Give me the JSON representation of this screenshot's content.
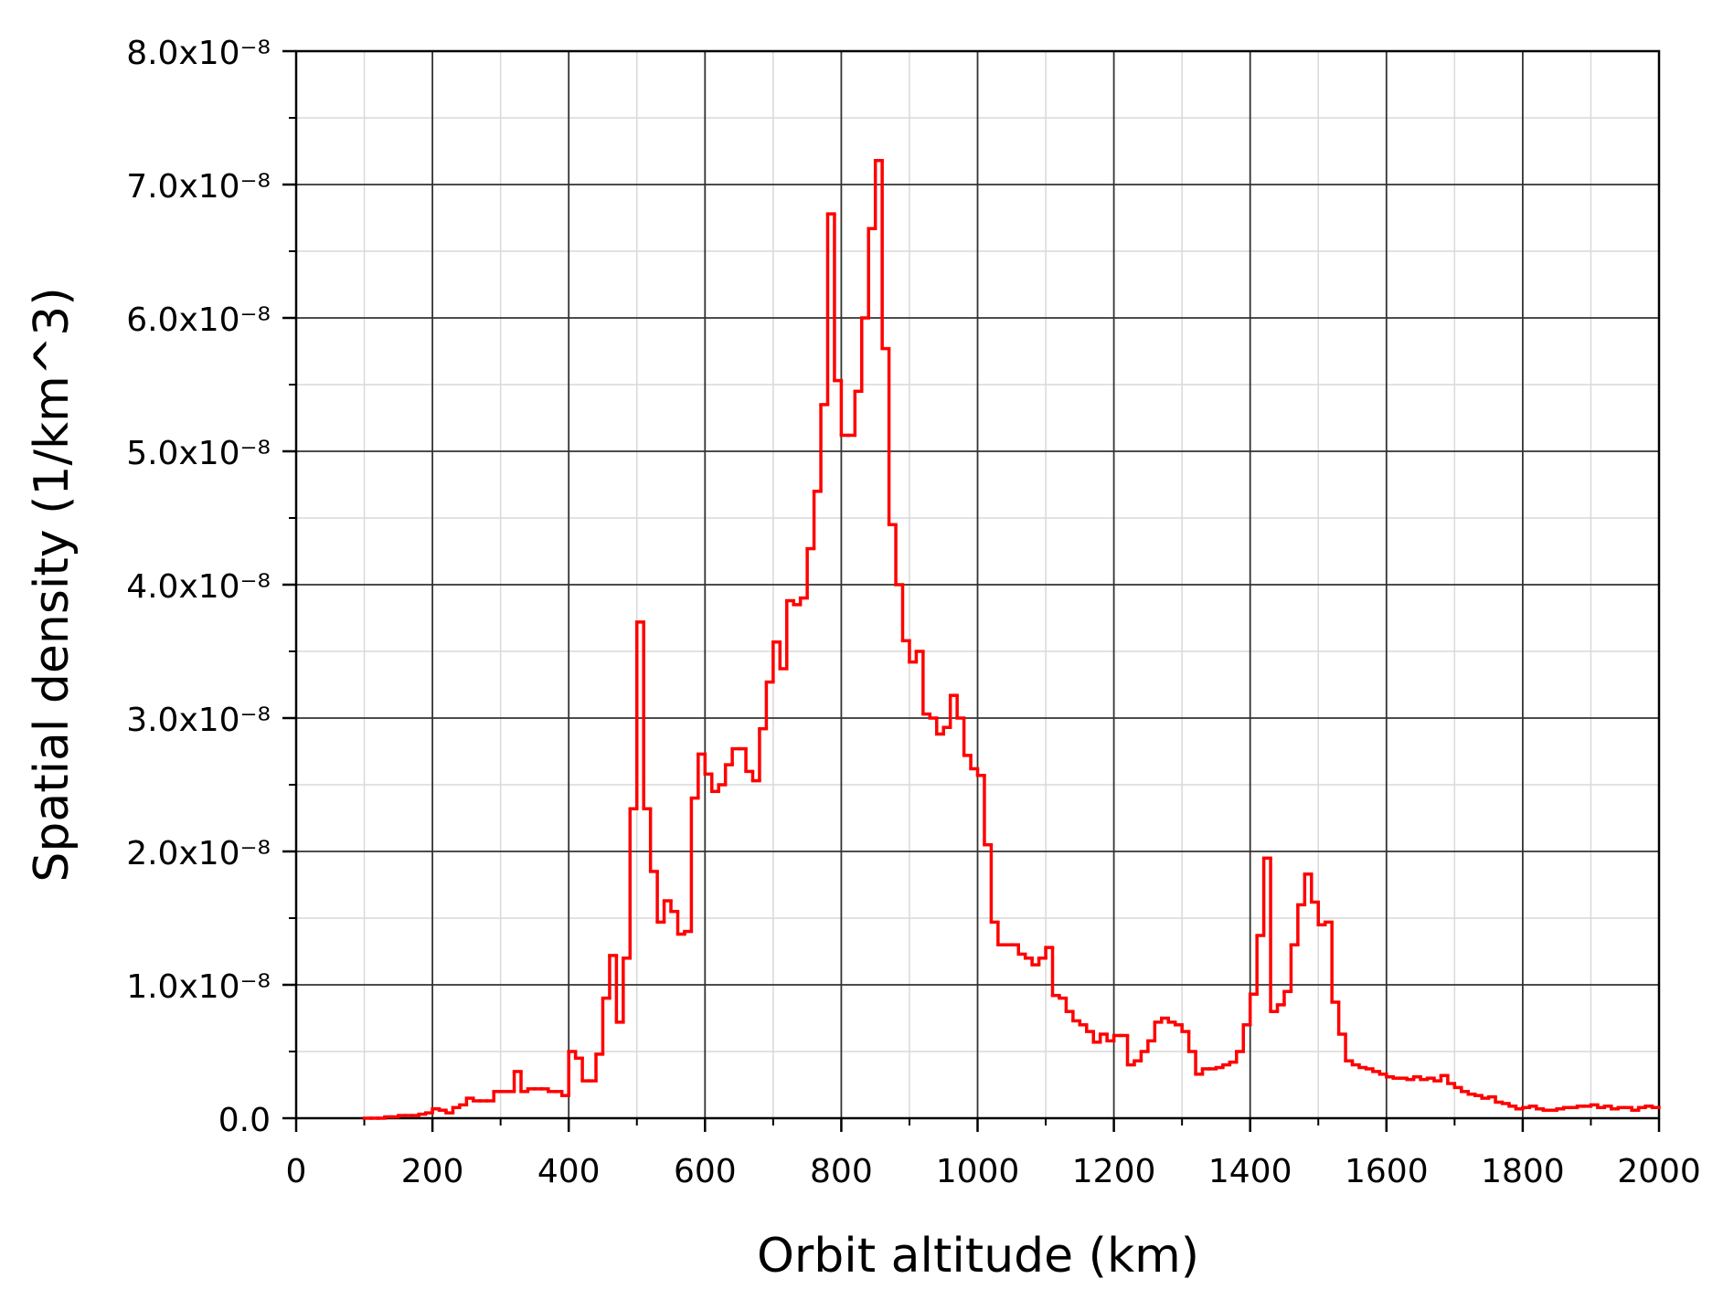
{
  "chart_data": {
    "type": "histogram",
    "xlabel": "Orbit altitude (km)",
    "ylabel": "Spatial density (1/km^3)",
    "color": "#ff0000",
    "grid": true,
    "xlim": [
      0,
      2000
    ],
    "xticks": [
      0,
      200,
      400,
      600,
      800,
      1000,
      1200,
      1400,
      1600,
      1800,
      2000
    ],
    "xminorticks": [
      100,
      300,
      500,
      700,
      900,
      1100,
      1300,
      1500,
      1700,
      1900
    ],
    "ylim": [
      0,
      8e-08
    ],
    "yticks": [
      {
        "value": 0,
        "label": "0.0"
      },
      {
        "value": 1e-08,
        "label": "1.0x10⁻⁸"
      },
      {
        "value": 2e-08,
        "label": "2.0x10⁻⁸"
      },
      {
        "value": 3e-08,
        "label": "3.0x10⁻⁸"
      },
      {
        "value": 4e-08,
        "label": "4.0x10⁻⁸"
      },
      {
        "value": 5e-08,
        "label": "5.0x10⁻⁸"
      },
      {
        "value": 6e-08,
        "label": "6.0x10⁻⁸"
      },
      {
        "value": 7e-08,
        "label": "7.0x10⁻⁸"
      },
      {
        "value": 8e-08,
        "label": "8.0x10⁻⁸"
      }
    ],
    "yminorticks": [
      5e-09,
      1.5e-08,
      2.5e-08,
      3.5e-08,
      4.5e-08,
      5.5e-08,
      6.5e-08,
      7.5e-08
    ],
    "bins": [
      100,
      110,
      120,
      130,
      140,
      150,
      160,
      170,
      180,
      190,
      200,
      210,
      220,
      230,
      240,
      250,
      260,
      270,
      280,
      290,
      300,
      310,
      320,
      330,
      340,
      350,
      360,
      370,
      380,
      390,
      400,
      410,
      420,
      430,
      440,
      450,
      460,
      470,
      480,
      490,
      500,
      510,
      520,
      530,
      540,
      550,
      560,
      570,
      580,
      590,
      600,
      610,
      620,
      630,
      640,
      650,
      660,
      670,
      680,
      690,
      700,
      710,
      720,
      730,
      740,
      750,
      760,
      770,
      780,
      790,
      800,
      810,
      820,
      830,
      840,
      850,
      860,
      870,
      880,
      890,
      900,
      910,
      920,
      930,
      940,
      950,
      960,
      970,
      980,
      990,
      1000,
      1010,
      1020,
      1030,
      1040,
      1050,
      1060,
      1070,
      1080,
      1090,
      1100,
      1110,
      1120,
      1130,
      1140,
      1150,
      1160,
      1170,
      1180,
      1190,
      1200,
      1210,
      1220,
      1230,
      1240,
      1250,
      1260,
      1270,
      1280,
      1290,
      1300,
      1310,
      1320,
      1330,
      1340,
      1350,
      1360,
      1370,
      1380,
      1390,
      1400,
      1410,
      1420,
      1430,
      1440,
      1450,
      1460,
      1470,
      1480,
      1490,
      1500,
      1510,
      1520,
      1530,
      1540,
      1550,
      1560,
      1570,
      1580,
      1590,
      1600,
      1610,
      1620,
      1630,
      1640,
      1650,
      1660,
      1670,
      1680,
      1690,
      1700,
      1710,
      1720,
      1730,
      1740,
      1750,
      1760,
      1770,
      1780,
      1790,
      1800,
      1810,
      1820,
      1830,
      1840,
      1850,
      1860,
      1870,
      1880,
      1890,
      1900,
      1910,
      1920,
      1930,
      1940,
      1950,
      1960,
      1970,
      1980,
      1990,
      2000
    ],
    "values": [
      0,
      0,
      0,
      1e-10,
      1e-10,
      2e-10,
      2e-10,
      2e-10,
      3e-10,
      4e-10,
      7e-10,
      6e-10,
      4e-10,
      8e-10,
      1e-09,
      1.5e-09,
      1.3e-09,
      1.3e-09,
      1.3e-09,
      2e-09,
      2e-09,
      2e-09,
      3.5e-09,
      2e-09,
      2.2e-09,
      2.2e-09,
      2.2e-09,
      2e-09,
      2e-09,
      1.7e-09,
      5e-09,
      4.5e-09,
      2.8e-09,
      2.8e-09,
      4.8e-09,
      9e-09,
      1.22e-08,
      7.2e-09,
      1.2e-08,
      2.32e-08,
      3.72e-08,
      2.32e-08,
      1.85e-08,
      1.47e-08,
      1.63e-08,
      1.55e-08,
      1.38e-08,
      1.4e-08,
      2.4e-08,
      2.73e-08,
      2.58e-08,
      2.45e-08,
      2.5e-08,
      2.65e-08,
      2.77e-08,
      2.77e-08,
      2.6e-08,
      2.53e-08,
      2.92e-08,
      3.27e-08,
      3.57e-08,
      3.37e-08,
      3.88e-08,
      3.85e-08,
      3.9e-08,
      4.27e-08,
      4.7e-08,
      5.35e-08,
      6.78e-08,
      5.53e-08,
      5.12e-08,
      5.12e-08,
      5.45e-08,
      6e-08,
      6.67e-08,
      7.18e-08,
      5.77e-08,
      4.45e-08,
      4e-08,
      3.58e-08,
      3.42e-08,
      3.5e-08,
      3.03e-08,
      3e-08,
      2.88e-08,
      2.93e-08,
      3.17e-08,
      3e-08,
      2.72e-08,
      2.62e-08,
      2.57e-08,
      2.05e-08,
      1.47e-08,
      1.3e-08,
      1.3e-08,
      1.3e-08,
      1.23e-08,
      1.2e-08,
      1.15e-08,
      1.2e-08,
      1.28e-08,
      9.2e-09,
      9e-09,
      8e-09,
      7.3e-09,
      7e-09,
      6.5e-09,
      5.7e-09,
      6.3e-09,
      5.8e-09,
      6.2e-09,
      6.2e-09,
      4e-09,
      4.3e-09,
      5e-09,
      5.8e-09,
      7.2e-09,
      7.5e-09,
      7.2e-09,
      7e-09,
      6.5e-09,
      5e-09,
      3.3e-09,
      3.7e-09,
      3.7e-09,
      3.8e-09,
      4e-09,
      4.2e-09,
      5e-09,
      7e-09,
      9.3e-09,
      1.37e-08,
      1.95e-08,
      8e-09,
      8.5e-09,
      9.5e-09,
      1.3e-08,
      1.6e-08,
      1.83e-08,
      1.62e-08,
      1.45e-08,
      1.47e-08,
      8.7e-09,
      6.3e-09,
      4.3e-09,
      4e-09,
      3.8e-09,
      3.7e-09,
      3.5e-09,
      3.3e-09,
      3.1e-09,
      3e-09,
      3e-09,
      2.9e-09,
      3.1e-09,
      2.9e-09,
      3e-09,
      2.8e-09,
      3.2e-09,
      2.6e-09,
      2.3e-09,
      2e-09,
      1.8e-09,
      1.7e-09,
      1.5e-09,
      1.6e-09,
      1.2e-09,
      1.1e-09,
      9e-10,
      7e-10,
      8e-10,
      9e-10,
      7e-10,
      6e-10,
      6e-10,
      7e-10,
      8e-10,
      8e-10,
      9e-10,
      9e-10,
      1e-09,
      8e-10,
      9e-10,
      7e-10,
      8e-10,
      8e-10,
      6e-10,
      8e-10,
      9e-10,
      8e-10
    ]
  }
}
